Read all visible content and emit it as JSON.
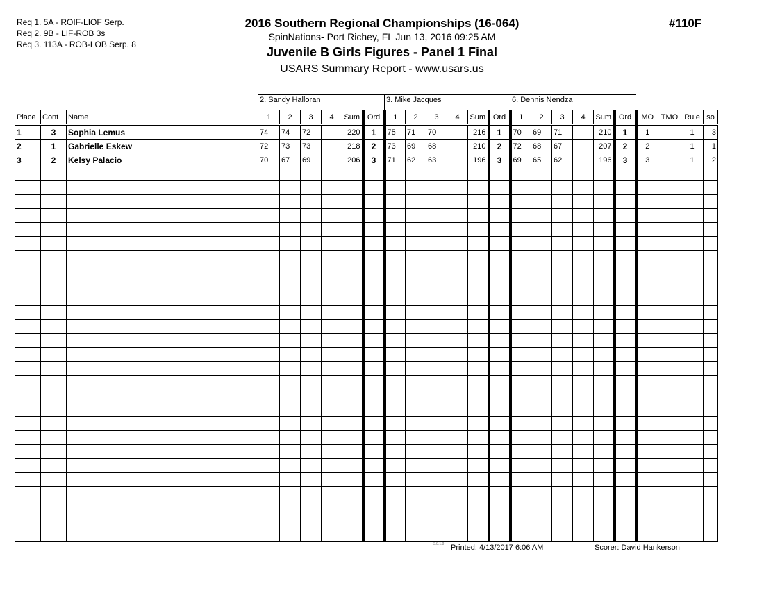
{
  "requirements": [
    "Req  1.  5A - ROIF-LIOF Serp.",
    "Req  2.  9B - LIF-ROB 3s",
    "Req  3.  113A - ROB-LOB Serp. 8"
  ],
  "header": {
    "title": "2016 Southern Regional Championships (16-064)",
    "location": "SpinNations- Port Richey, FL  Jun 13, 2016  09:25 AM",
    "event": "Juvenile B Girls Figures - Panel 1 Final",
    "report": "USARS Summary Report - www.usars.us",
    "code": "#110F"
  },
  "judges": [
    "2.  Sandy Halloran",
    "3.  Mike Jacques",
    "6.  Dennis Nendza"
  ],
  "columns": {
    "place": "Place",
    "cont": "Cont",
    "name": "Name",
    "judge_cols": [
      "1",
      "2",
      "3",
      "4",
      "Sum",
      "Ord"
    ],
    "extra": [
      "MO",
      "TMO",
      "Rule",
      "so"
    ]
  },
  "rows": [
    {
      "place": "1",
      "cont": "3",
      "name": "Sophia Lemus",
      "judges": [
        [
          "74",
          "74",
          "72",
          "",
          "220",
          "1"
        ],
        [
          "75",
          "71",
          "70",
          "",
          "216",
          "1"
        ],
        [
          "70",
          "69",
          "71",
          "",
          "210",
          "1"
        ]
      ],
      "mo": "1",
      "tmo": "",
      "rule": "1",
      "so": "3"
    },
    {
      "place": "2",
      "cont": "1",
      "name": "Gabrielle Eskew",
      "judges": [
        [
          "72",
          "73",
          "73",
          "",
          "218",
          "2"
        ],
        [
          "73",
          "69",
          "68",
          "",
          "210",
          "2"
        ],
        [
          "72",
          "68",
          "67",
          "",
          "207",
          "2"
        ]
      ],
      "mo": "2",
      "tmo": "",
      "rule": "1",
      "so": "1"
    },
    {
      "place": "3",
      "cont": "2",
      "name": "Kelsy Palacio",
      "judges": [
        [
          "70",
          "67",
          "69",
          "",
          "206",
          "3"
        ],
        [
          "71",
          "62",
          "63",
          "",
          "196",
          "3"
        ],
        [
          "69",
          "65",
          "62",
          "",
          "196",
          "3"
        ]
      ],
      "mo": "3",
      "tmo": "",
      "rule": "1",
      "so": "2"
    }
  ],
  "footer": {
    "version": "3.8.1.8",
    "printed": "Printed:  4/13/2017  6:06 AM",
    "scorer": "Scorer:    David Hankerson"
  }
}
